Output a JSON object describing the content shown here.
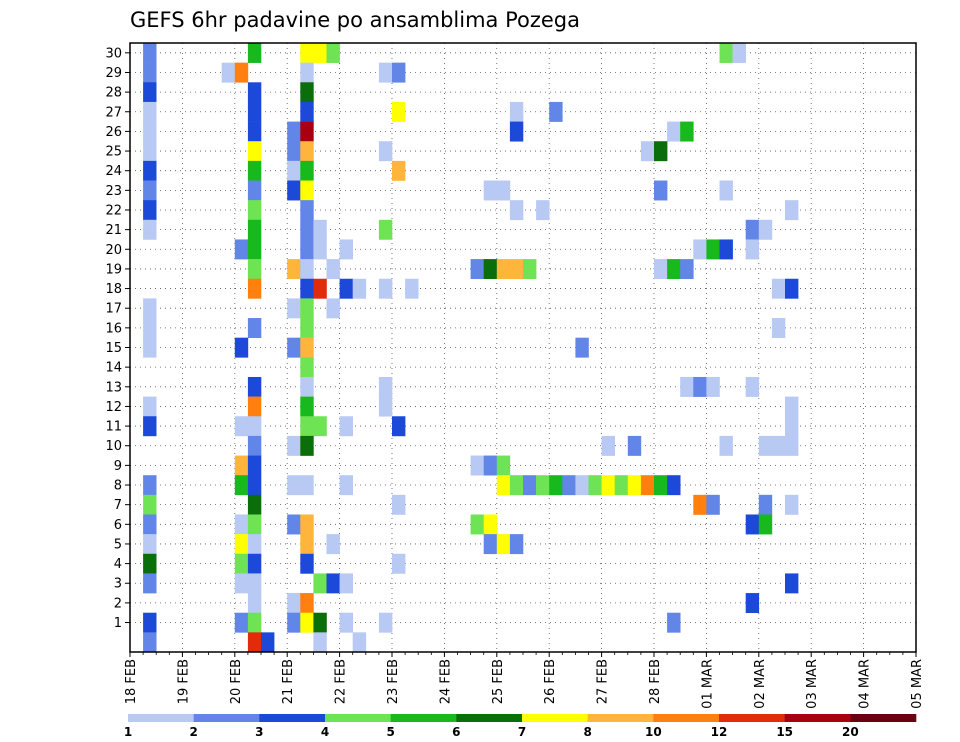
{
  "chart_data": {
    "type": "heatmap",
    "title": "GEFS 6hr padavine po ansamblima Pozega",
    "x_axis": {
      "tick_labels": [
        "18 FEB",
        "19 FEB",
        "20 FEB",
        "21 FEB",
        "22 FEB",
        "23 FEB",
        "24 FEB",
        "25 FEB",
        "26 FEB",
        "27 FEB",
        "28 FEB",
        "01 MAR",
        "02 MAR",
        "03 MAR",
        "04 MAR",
        "05 MAR"
      ],
      "steps_per_day": 4
    },
    "y_axis": {
      "tick_labels": [
        1,
        2,
        3,
        4,
        5,
        6,
        7,
        8,
        9,
        10,
        11,
        12,
        13,
        14,
        15,
        16,
        17,
        18,
        19,
        20,
        21,
        22,
        23,
        24,
        25,
        26,
        27,
        28,
        29,
        30
      ]
    },
    "colorbar": {
      "labels": [
        "1",
        "2",
        "3",
        "4",
        "5",
        "6",
        "7",
        "8",
        "10",
        "12",
        "15",
        "20"
      ],
      "colors": [
        "#b8c9f3",
        "#6186e8",
        "#1d49d8",
        "#6ee455",
        "#18b91d",
        "#0a6e0a",
        "#ffff00",
        "#ffb43c",
        "#ff7f0f",
        "#e22b0b",
        "#a80010",
        "#6b0010"
      ]
    },
    "cells": [
      [
        30,
        1,
        1
      ],
      [
        30,
        9,
        4
      ],
      [
        30,
        13,
        6
      ],
      [
        30,
        14,
        6
      ],
      [
        30,
        15,
        3
      ],
      [
        30,
        45,
        3
      ],
      [
        30,
        46,
        0
      ],
      [
        29,
        1,
        1
      ],
      [
        29,
        7,
        0
      ],
      [
        29,
        8,
        8
      ],
      [
        29,
        13,
        0
      ],
      [
        29,
        19,
        0
      ],
      [
        29,
        20,
        1
      ],
      [
        28,
        1,
        2
      ],
      [
        28,
        9,
        2
      ],
      [
        28,
        13,
        5
      ],
      [
        27,
        1,
        0
      ],
      [
        27,
        9,
        2
      ],
      [
        27,
        13,
        2
      ],
      [
        27,
        20,
        6
      ],
      [
        27,
        29,
        0
      ],
      [
        27,
        32,
        1
      ],
      [
        26,
        1,
        0
      ],
      [
        26,
        9,
        2
      ],
      [
        26,
        12,
        1
      ],
      [
        26,
        13,
        10
      ],
      [
        26,
        29,
        2
      ],
      [
        26,
        41,
        0
      ],
      [
        26,
        42,
        4
      ],
      [
        25,
        1,
        0
      ],
      [
        25,
        9,
        6
      ],
      [
        25,
        12,
        1
      ],
      [
        25,
        13,
        7
      ],
      [
        25,
        19,
        0
      ],
      [
        25,
        39,
        0
      ],
      [
        25,
        40,
        5
      ],
      [
        24,
        1,
        2
      ],
      [
        24,
        9,
        4
      ],
      [
        24,
        12,
        0
      ],
      [
        24,
        13,
        4
      ],
      [
        24,
        20,
        7
      ],
      [
        23,
        1,
        1
      ],
      [
        23,
        9,
        1
      ],
      [
        23,
        12,
        2
      ],
      [
        23,
        13,
        6
      ],
      [
        23,
        27,
        0
      ],
      [
        23,
        28,
        0
      ],
      [
        23,
        40,
        1
      ],
      [
        23,
        45,
        0
      ],
      [
        22,
        1,
        2
      ],
      [
        22,
        9,
        3
      ],
      [
        22,
        13,
        1
      ],
      [
        22,
        29,
        0
      ],
      [
        22,
        31,
        0
      ],
      [
        22,
        50,
        0
      ],
      [
        21,
        1,
        0
      ],
      [
        21,
        9,
        4
      ],
      [
        21,
        13,
        1
      ],
      [
        21,
        14,
        0
      ],
      [
        21,
        19,
        3
      ],
      [
        21,
        47,
        1
      ],
      [
        21,
        48,
        0
      ],
      [
        20,
        8,
        1
      ],
      [
        20,
        9,
        4
      ],
      [
        20,
        13,
        1
      ],
      [
        20,
        14,
        0
      ],
      [
        20,
        16,
        0
      ],
      [
        20,
        43,
        0
      ],
      [
        20,
        44,
        4
      ],
      [
        20,
        45,
        2
      ],
      [
        20,
        47,
        0
      ],
      [
        19,
        9,
        3
      ],
      [
        19,
        12,
        7
      ],
      [
        19,
        13,
        0
      ],
      [
        19,
        15,
        0
      ],
      [
        19,
        26,
        1
      ],
      [
        19,
        27,
        5
      ],
      [
        19,
        28,
        7
      ],
      [
        19,
        29,
        7
      ],
      [
        19,
        30,
        3
      ],
      [
        19,
        40,
        0
      ],
      [
        19,
        41,
        4
      ],
      [
        19,
        42,
        1
      ],
      [
        18,
        9,
        8
      ],
      [
        18,
        13,
        2
      ],
      [
        18,
        14,
        9
      ],
      [
        18,
        16,
        2
      ],
      [
        18,
        17,
        0
      ],
      [
        18,
        19,
        0
      ],
      [
        18,
        21,
        0
      ],
      [
        18,
        49,
        0
      ],
      [
        18,
        50,
        2
      ],
      [
        17,
        1,
        0
      ],
      [
        17,
        12,
        0
      ],
      [
        17,
        13,
        3
      ],
      [
        17,
        15,
        0
      ],
      [
        16,
        1,
        0
      ],
      [
        16,
        9,
        1
      ],
      [
        16,
        13,
        3
      ],
      [
        16,
        49,
        0
      ],
      [
        15,
        1,
        0
      ],
      [
        15,
        8,
        2
      ],
      [
        15,
        12,
        1
      ],
      [
        15,
        13,
        7
      ],
      [
        15,
        34,
        1
      ],
      [
        14,
        13,
        3
      ],
      [
        13,
        9,
        2
      ],
      [
        13,
        13,
        0
      ],
      [
        13,
        19,
        0
      ],
      [
        13,
        42,
        0
      ],
      [
        13,
        43,
        1
      ],
      [
        13,
        44,
        0
      ],
      [
        13,
        47,
        0
      ],
      [
        12,
        1,
        0
      ],
      [
        12,
        9,
        8
      ],
      [
        12,
        13,
        4
      ],
      [
        12,
        19,
        0
      ],
      [
        12,
        50,
        0
      ],
      [
        11,
        1,
        2
      ],
      [
        11,
        8,
        0
      ],
      [
        11,
        9,
        0
      ],
      [
        11,
        13,
        3
      ],
      [
        11,
        14,
        3
      ],
      [
        11,
        16,
        0
      ],
      [
        11,
        20,
        2
      ],
      [
        11,
        50,
        0
      ],
      [
        10,
        9,
        1
      ],
      [
        10,
        12,
        0
      ],
      [
        10,
        13,
        5
      ],
      [
        10,
        36,
        0
      ],
      [
        10,
        38,
        1
      ],
      [
        10,
        45,
        0
      ],
      [
        10,
        48,
        0
      ],
      [
        10,
        49,
        0
      ],
      [
        10,
        50,
        0
      ],
      [
        9,
        8,
        7
      ],
      [
        9,
        9,
        2
      ],
      [
        9,
        26,
        0
      ],
      [
        9,
        27,
        1
      ],
      [
        9,
        28,
        3
      ],
      [
        8,
        1,
        1
      ],
      [
        8,
        8,
        4
      ],
      [
        8,
        9,
        2
      ],
      [
        8,
        12,
        0
      ],
      [
        8,
        13,
        0
      ],
      [
        8,
        16,
        0
      ],
      [
        8,
        28,
        6
      ],
      [
        8,
        29,
        3
      ],
      [
        8,
        30,
        1
      ],
      [
        8,
        31,
        3
      ],
      [
        8,
        32,
        4
      ],
      [
        8,
        33,
        1
      ],
      [
        8,
        34,
        0
      ],
      [
        8,
        35,
        3
      ],
      [
        8,
        36,
        6
      ],
      [
        8,
        37,
        3
      ],
      [
        8,
        38,
        6
      ],
      [
        8,
        39,
        8
      ],
      [
        8,
        40,
        4
      ],
      [
        8,
        41,
        2
      ],
      [
        7,
        1,
        3
      ],
      [
        7,
        9,
        5
      ],
      [
        7,
        20,
        0
      ],
      [
        7,
        43,
        8
      ],
      [
        7,
        44,
        1
      ],
      [
        7,
        48,
        1
      ],
      [
        7,
        50,
        0
      ],
      [
        6,
        1,
        1
      ],
      [
        6,
        8,
        0
      ],
      [
        6,
        9,
        3
      ],
      [
        6,
        12,
        1
      ],
      [
        6,
        13,
        7
      ],
      [
        6,
        26,
        3
      ],
      [
        6,
        27,
        6
      ],
      [
        6,
        47,
        2
      ],
      [
        6,
        48,
        4
      ],
      [
        5,
        1,
        0
      ],
      [
        5,
        8,
        6
      ],
      [
        5,
        9,
        0
      ],
      [
        5,
        13,
        7
      ],
      [
        5,
        15,
        0
      ],
      [
        5,
        27,
        1
      ],
      [
        5,
        28,
        6
      ],
      [
        5,
        29,
        1
      ],
      [
        4,
        1,
        5
      ],
      [
        4,
        8,
        3
      ],
      [
        4,
        9,
        2
      ],
      [
        4,
        13,
        2
      ],
      [
        4,
        20,
        0
      ],
      [
        3,
        1,
        1
      ],
      [
        3,
        8,
        0
      ],
      [
        3,
        9,
        0
      ],
      [
        3,
        14,
        3
      ],
      [
        3,
        15,
        2
      ],
      [
        3,
        16,
        0
      ],
      [
        3,
        50,
        2
      ],
      [
        2,
        9,
        0
      ],
      [
        2,
        12,
        0
      ],
      [
        2,
        13,
        8
      ],
      [
        2,
        47,
        2
      ],
      [
        1,
        1,
        2
      ],
      [
        1,
        8,
        1
      ],
      [
        1,
        9,
        3
      ],
      [
        1,
        12,
        1
      ],
      [
        1,
        13,
        6
      ],
      [
        1,
        14,
        5
      ],
      [
        1,
        16,
        0
      ],
      [
        1,
        19,
        0
      ],
      [
        1,
        41,
        1
      ],
      [
        0,
        1,
        1
      ],
      [
        0,
        9,
        9
      ],
      [
        0,
        10,
        2
      ],
      [
        0,
        14,
        0
      ],
      [
        0,
        17,
        0
      ]
    ]
  }
}
